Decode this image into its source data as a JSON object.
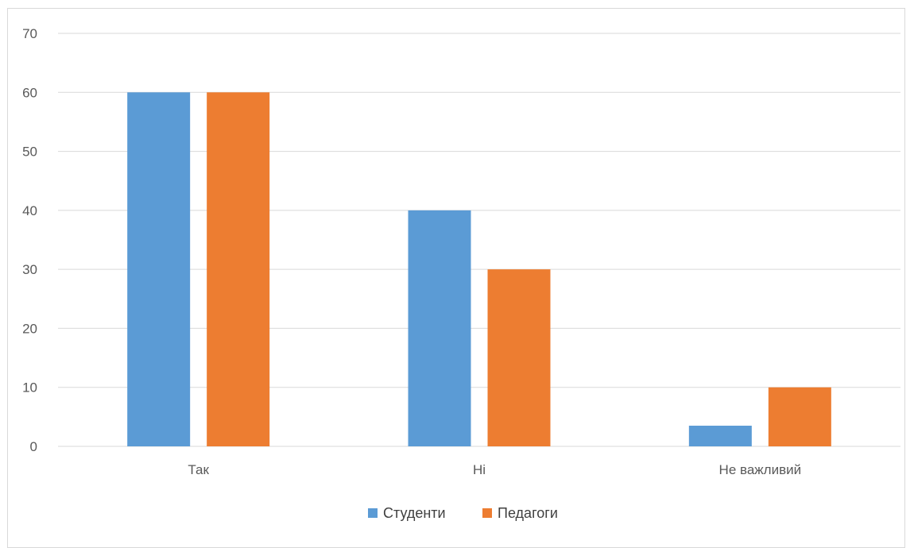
{
  "chart_data": {
    "type": "bar",
    "categories": [
      "Так",
      "Ні",
      "Не важливий"
    ],
    "series": [
      {
        "name": "Студенти",
        "values": [
          60,
          40,
          3.5
        ],
        "color": "#5b9bd5"
      },
      {
        "name": "Педагоги",
        "values": [
          60,
          30,
          10
        ],
        "color": "#ed7d31"
      }
    ],
    "ylim": [
      0,
      70
    ],
    "yticks": [
      0,
      10,
      20,
      30,
      40,
      50,
      60,
      70
    ],
    "grid": true,
    "legend": "bottom-center",
    "title": "",
    "xlabel": "",
    "ylabel": ""
  }
}
